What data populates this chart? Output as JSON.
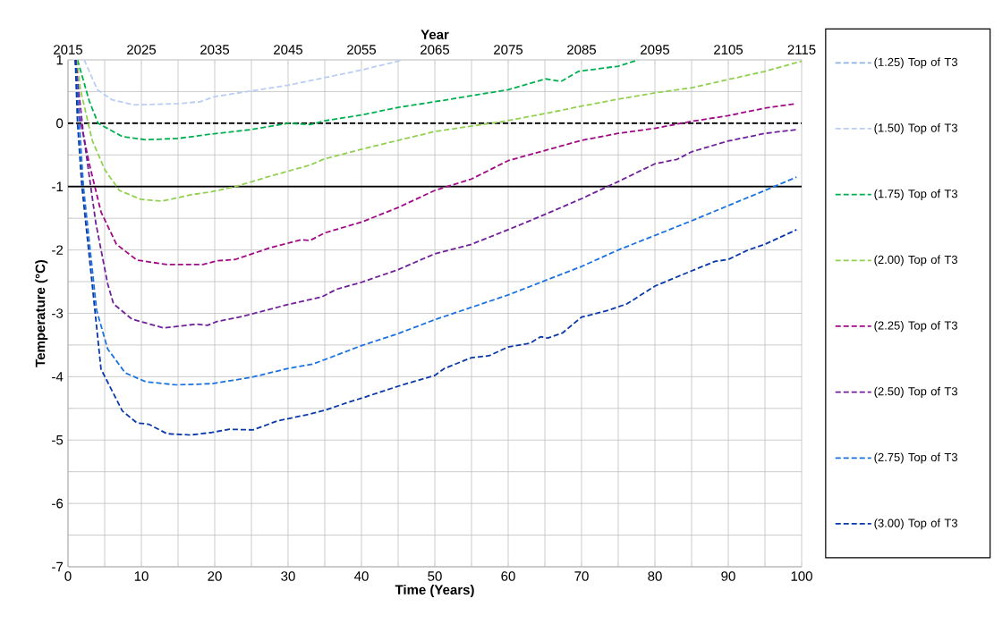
{
  "chart_data": {
    "type": "line",
    "xlabel": "Time (Years)",
    "ylabel": "Temperature (°C)",
    "x2label": "Year",
    "xlim": [
      0,
      100
    ],
    "xticks": [
      0,
      {
        "value": 5,
        "label": null
      },
      10,
      {
        "value": 15,
        "label": null
      },
      20,
      {
        "value": 25,
        "label": null
      },
      30,
      {
        "value": 35,
        "label": null
      },
      40,
      {
        "value": 45,
        "label": null
      },
      50,
      {
        "value": 55,
        "label": null
      },
      60,
      {
        "value": 65,
        "label": null
      },
      70,
      {
        "value": 75,
        "label": null
      },
      80,
      {
        "value": 85,
        "label": null
      },
      90,
      {
        "value": 95,
        "label": null
      },
      100
    ],
    "ylim": [
      -7,
      1
    ],
    "yticks": [
      -7,
      {
        "value": -6.5,
        "label": null
      },
      -6,
      {
        "value": -5.5,
        "label": null
      },
      -5,
      {
        "value": -4.5,
        "label": null
      },
      -4,
      {
        "value": -3.5,
        "label": null
      },
      -3,
      {
        "value": -2.5,
        "label": null
      },
      -2,
      {
        "value": -1.5,
        "label": null
      },
      -1,
      {
        "value": -0.5,
        "label": null
      },
      0,
      {
        "value": 0.5,
        "label": null
      },
      1
    ],
    "x2lim": [
      2015,
      2115
    ],
    "x2ticks": [
      2015,
      2025,
      2035,
      2045,
      2055,
      2065,
      2075,
      2085,
      2095,
      2105,
      2115
    ],
    "grid": true,
    "legend": "right",
    "line_style": "dashed",
    "ref_lines": [
      {
        "axis": "y",
        "value": 0,
        "color": "#000000",
        "line_style": "dashed"
      },
      {
        "axis": "y",
        "value": -1,
        "color": "#000000",
        "line_style": "solid"
      }
    ],
    "series": [
      {
        "name": "(1.25) Top of T3",
        "color": "#8db4e2"
      },
      {
        "name": "(1.50) Top of T3",
        "color": "#b9cdf5",
        "x": [
          2.2,
          4,
          6,
          9,
          15,
          18,
          20,
          25,
          30,
          35,
          40,
          45,
          45.5
        ],
        "values": [
          1,
          0.53,
          0.37,
          0.29,
          0.31,
          0.34,
          0.42,
          0.51,
          0.6,
          0.72,
          0.84,
          0.98,
          1
        ]
      },
      {
        "name": "(1.75) Top of T3",
        "color": "#00b050",
        "x": [
          1.3,
          2.9,
          4.1,
          7.4,
          10.6,
          15,
          19.6,
          24.9,
          30,
          33,
          35,
          40,
          45,
          50,
          60,
          65.1,
          67.2,
          69.6,
          75,
          77.7
        ],
        "values": [
          1,
          0.35,
          0,
          -0.21,
          -0.26,
          -0.24,
          -0.17,
          -0.1,
          0,
          -0.02,
          0.04,
          0.13,
          0.25,
          0.34,
          0.53,
          0.7,
          0.66,
          0.82,
          0.9,
          1
        ]
      },
      {
        "name": "(2.00) Top of T3",
        "color": "#92d050",
        "x": [
          1.2,
          1.7,
          3.3,
          5,
          7,
          9.9,
          12.8,
          16.7,
          19.6,
          22.8,
          27.7,
          33,
          35,
          40,
          45,
          50,
          59.4,
          64.9,
          70,
          75,
          80,
          85,
          90,
          95,
          100
        ],
        "values": [
          1,
          0.53,
          -0.27,
          -0.73,
          -1.06,
          -1.2,
          -1.23,
          -1.13,
          -1.08,
          -1,
          -0.83,
          -0.66,
          -0.56,
          -0.41,
          -0.27,
          -0.13,
          0.03,
          0.15,
          0.27,
          0.38,
          0.48,
          0.56,
          0.69,
          0.82,
          0.98
        ]
      },
      {
        "name": "(2.25) Top of T3",
        "color": "#a10a86",
        "x": [
          1.1,
          1.5,
          2.9,
          4.5,
          6.6,
          9.4,
          13.5,
          18.4,
          20.4,
          22.8,
          27.7,
          31.8,
          33,
          35,
          40,
          45,
          50,
          55,
          60,
          65,
          70,
          75,
          80,
          85,
          90,
          95,
          99.3
        ],
        "values": [
          1,
          0.15,
          -0.64,
          -1.4,
          -1.91,
          -2.16,
          -2.23,
          -2.23,
          -2.17,
          -2.15,
          -1.96,
          -1.84,
          -1.85,
          -1.73,
          -1.56,
          -1.33,
          -1.06,
          -0.88,
          -0.59,
          -0.43,
          -0.27,
          -0.16,
          -0.08,
          0.03,
          0.12,
          0.24,
          0.31
        ]
      },
      {
        "name": "(2.50) Top of T3",
        "color": "#70209a",
        "x": [
          1,
          2.1,
          3.8,
          5.4,
          6.2,
          8.7,
          13,
          17.6,
          19,
          20.3,
          23.7,
          30,
          34.6,
          36.6,
          40,
          45,
          50,
          55,
          60,
          65,
          70,
          75,
          80,
          83,
          85,
          90,
          95,
          99.3
        ],
        "values": [
          1,
          -0.17,
          -1.58,
          -2.53,
          -2.85,
          -3.09,
          -3.23,
          -3.17,
          -3.19,
          -3.13,
          -3.05,
          -2.86,
          -2.74,
          -2.62,
          -2.51,
          -2.31,
          -2.06,
          -1.91,
          -1.68,
          -1.44,
          -1.19,
          -0.92,
          -0.64,
          -0.57,
          -0.45,
          -0.28,
          -0.16,
          -0.1
        ]
      },
      {
        "name": "(2.75) Top of T3",
        "color": "#1a73e0",
        "x": [
          1,
          2.1,
          3.9,
          5.4,
          7.8,
          10.6,
          14.8,
          19.6,
          25,
          30,
          33.4,
          35,
          40,
          45,
          50,
          60,
          70,
          75,
          85,
          95,
          99.3
        ],
        "values": [
          1,
          -1,
          -2.95,
          -3.56,
          -3.94,
          -4.08,
          -4.13,
          -4.11,
          -4.01,
          -3.87,
          -3.8,
          -3.73,
          -3.51,
          -3.32,
          -3.1,
          -2.71,
          -2.26,
          -2,
          -1.54,
          -1.06,
          -0.85
        ]
      },
      {
        "name": "(3.00) Top of T3",
        "color": "#0a3aa8",
        "x": [
          1,
          1.3,
          1.9,
          2.9,
          4.5,
          7.4,
          9.4,
          11,
          13.5,
          16.7,
          19.6,
          22,
          25.2,
          28.5,
          33,
          35,
          38.3,
          40,
          45,
          50,
          51.3,
          55,
          57.4,
          60,
          63,
          64.4,
          65.4,
          67.4,
          70,
          73.7,
          76.2,
          80,
          85,
          88.2,
          90,
          92.7,
          95,
          99.3
        ],
        "values": [
          1,
          0,
          -1,
          -2.1,
          -3.88,
          -4.54,
          -4.73,
          -4.75,
          -4.9,
          -4.92,
          -4.88,
          -4.83,
          -4.84,
          -4.7,
          -4.59,
          -4.53,
          -4.4,
          -4.34,
          -4.15,
          -3.98,
          -3.87,
          -3.7,
          -3.67,
          -3.53,
          -3.47,
          -3.37,
          -3.39,
          -3.31,
          -3.06,
          -2.95,
          -2.85,
          -2.57,
          -2.33,
          -2.18,
          -2.15,
          -2,
          -1.91,
          -1.68
        ]
      }
    ]
  }
}
